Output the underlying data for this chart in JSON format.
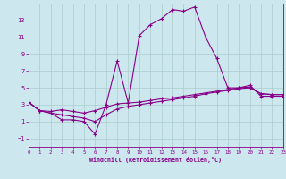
{
  "xlabel": "Windchill (Refroidissement éolien,°C)",
  "background_color": "#cce8ee",
  "grid_color": "#aacccc",
  "line_color": "#880088",
  "xlim": [
    0,
    23
  ],
  "ylim": [
    -2,
    15
  ],
  "xticks": [
    0,
    1,
    2,
    3,
    4,
    5,
    6,
    7,
    8,
    9,
    10,
    11,
    12,
    13,
    14,
    15,
    16,
    17,
    18,
    19,
    20,
    21,
    22,
    23
  ],
  "yticks": [
    -1,
    1,
    3,
    5,
    7,
    9,
    11,
    13
  ],
  "series1_x": [
    0,
    1,
    2,
    3,
    4,
    5,
    6,
    7,
    8,
    9,
    10,
    11,
    12,
    13,
    14,
    15,
    16,
    17,
    18,
    19,
    20,
    21,
    22,
    23
  ],
  "series1_y": [
    3.3,
    2.3,
    2.0,
    1.2,
    1.2,
    1.0,
    -0.5,
    3.0,
    8.2,
    3.2,
    11.2,
    12.5,
    13.2,
    14.3,
    14.1,
    14.6,
    11.0,
    8.5,
    5.0,
    5.0,
    5.3,
    4.0,
    4.0,
    4.0
  ],
  "series2_x": [
    0,
    1,
    2,
    3,
    4,
    5,
    6,
    7,
    8,
    9,
    10,
    11,
    12,
    13,
    14,
    15,
    16,
    17,
    18,
    19,
    20,
    21,
    22,
    23
  ],
  "series2_y": [
    3.3,
    2.3,
    2.2,
    2.4,
    2.2,
    2.0,
    2.3,
    2.7,
    3.1,
    3.2,
    3.3,
    3.5,
    3.7,
    3.8,
    4.0,
    4.2,
    4.4,
    4.6,
    4.8,
    5.0,
    5.1,
    4.3,
    4.2,
    4.2
  ],
  "series3_x": [
    0,
    1,
    2,
    3,
    4,
    5,
    6,
    7,
    8,
    9,
    10,
    11,
    12,
    13,
    14,
    15,
    16,
    17,
    18,
    19,
    20,
    21,
    22,
    23
  ],
  "series3_y": [
    3.3,
    2.3,
    2.0,
    1.8,
    1.6,
    1.4,
    1.0,
    1.8,
    2.5,
    2.8,
    3.0,
    3.2,
    3.4,
    3.6,
    3.8,
    4.0,
    4.3,
    4.5,
    4.7,
    4.9,
    5.0,
    4.3,
    4.2,
    4.2
  ]
}
